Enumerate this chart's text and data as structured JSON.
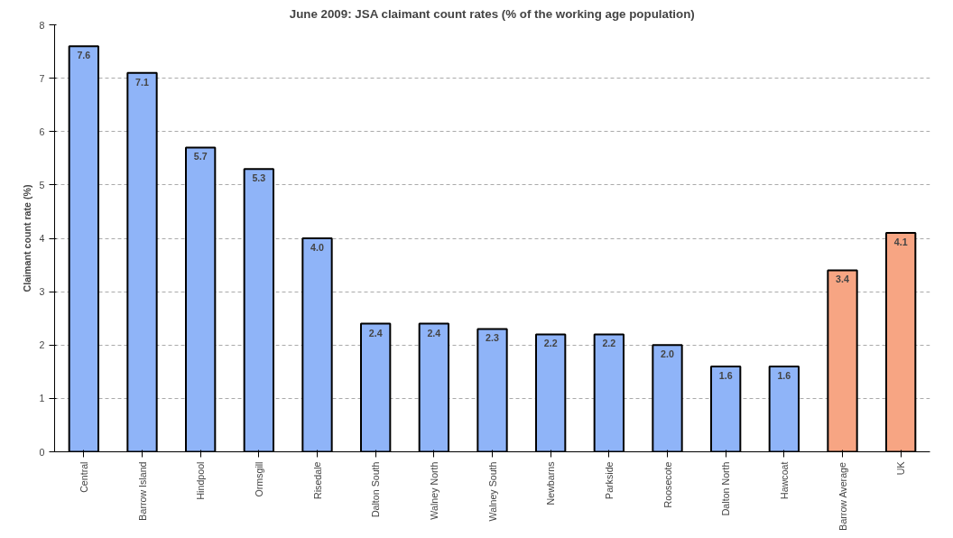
{
  "chart_data": {
    "type": "bar",
    "title": "June 2009: JSA claimant count rates (% of the working age population)",
    "ylabel": "Claimant count rate (%)",
    "categories": [
      "Central",
      "Barrow Island",
      "Hindpool",
      "Ormsgill",
      "Risedale",
      "Dalton South",
      "Walney North",
      "Walney South",
      "Newbarns",
      "Parkside",
      "Roosecote",
      "Dalton North",
      "Hawcoat",
      "Barrow Average",
      "UK"
    ],
    "values": [
      7.6,
      7.1,
      5.7,
      5.3,
      4.0,
      2.4,
      2.4,
      2.3,
      2.2,
      2.2,
      2.0,
      1.6,
      1.6,
      3.4,
      4.1
    ],
    "value_labels": [
      "7.6",
      "7.1",
      "5.7",
      "5.3",
      "4.0",
      "2.4",
      "2.4",
      "2.3",
      "2.2",
      "2.2",
      "2.0",
      "1.6",
      "1.6",
      "3.4",
      "4.1"
    ],
    "colors": [
      "#8fb4f8",
      "#8fb4f8",
      "#8fb4f8",
      "#8fb4f8",
      "#8fb4f8",
      "#8fb4f8",
      "#8fb4f8",
      "#8fb4f8",
      "#8fb4f8",
      "#8fb4f8",
      "#8fb4f8",
      "#8fb4f8",
      "#8fb4f8",
      "#f7a583",
      "#f7a583"
    ],
    "ylim": [
      0,
      8
    ],
    "yticks": [
      0,
      1,
      2,
      3,
      4,
      5,
      6,
      7,
      8
    ],
    "grid": "y"
  }
}
